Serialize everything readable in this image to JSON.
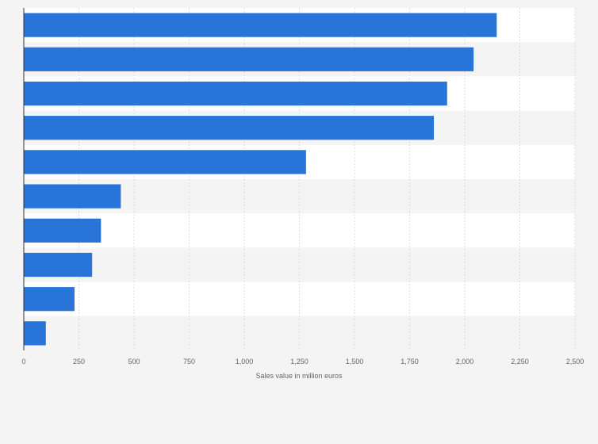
{
  "chart_data": {
    "type": "bar",
    "orientation": "horizontal",
    "title": "",
    "xlabel": "Sales value in million euros",
    "ylabel": "",
    "xlim": [
      0,
      2500
    ],
    "xticks": [
      0,
      250,
      500,
      750,
      1000,
      1250,
      1500,
      1750,
      2000,
      2250,
      2500
    ],
    "xtick_labels": [
      "0",
      "250",
      "500",
      "750",
      "1,000",
      "1,250",
      "1,500",
      "1,750",
      "2,000",
      "2,250",
      "2,500"
    ],
    "categories": [
      "",
      "",
      "",
      "",
      "",
      "",
      "",
      "",
      "",
      ""
    ],
    "values": [
      2145,
      2040,
      1920,
      1860,
      1280,
      440,
      350,
      310,
      230,
      100
    ],
    "bar_color": "#2874d9",
    "grid": true,
    "stripe_colors": [
      "#ffffff",
      "#f4f4f4"
    ]
  }
}
